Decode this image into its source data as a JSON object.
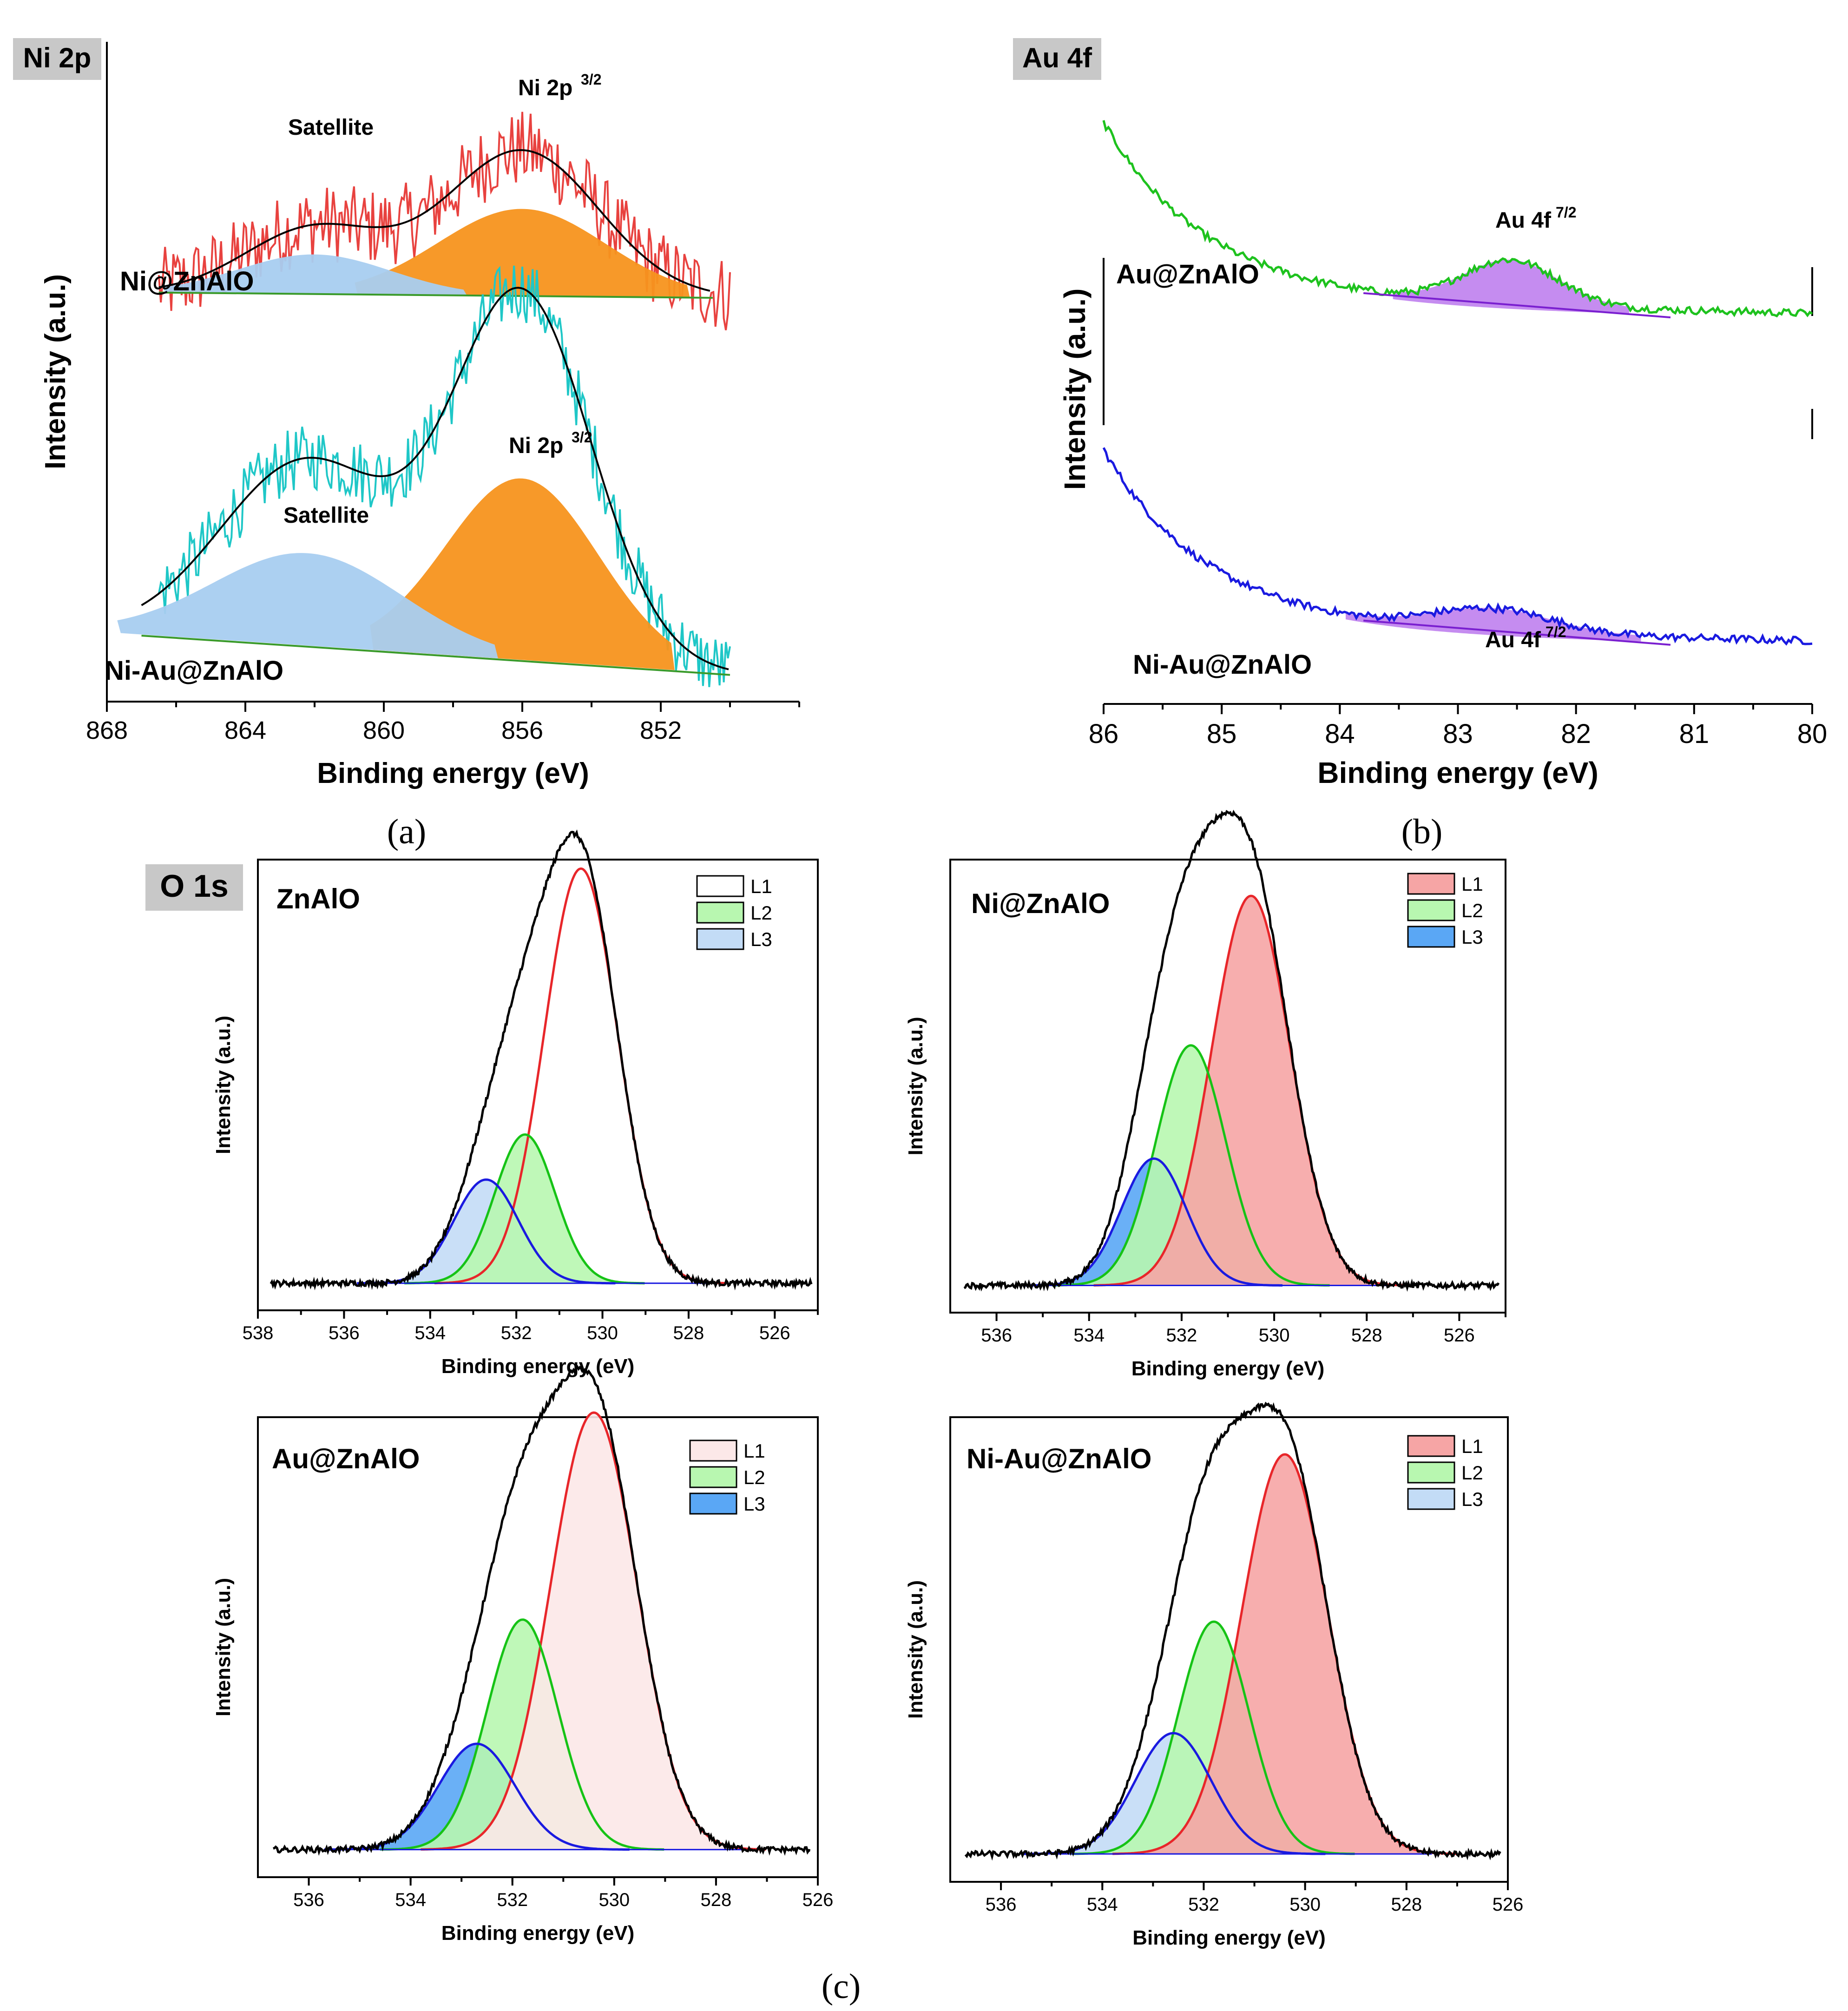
{
  "colors": {
    "ni_raw": "#e8423f",
    "niau_raw": "#1fc7c7",
    "au_raw": "#1ec21e",
    "niau_au_raw": "#1a1ae0",
    "orange_fill": "#f7931e",
    "blue_fill": "#a8cdf0",
    "purple_fill": "#c58cf0",
    "purple_line": "#7a1fd0",
    "l1_line": "#e8262a",
    "l1_fill": "#f6a5a5",
    "l1_fill_light": "#fce8e8",
    "l2_line": "#16c316",
    "l2_fill": "#b8f7b0",
    "l3_line": "#1a1ae0",
    "l3_fill": "#5aa7f5",
    "l3_fill_light": "#c3dcf6",
    "envelope": "#000000"
  },
  "panel_captions": [
    "(a)",
    "(b)",
    "(c)"
  ],
  "panel_tags": {
    "a": "Ni 2p",
    "b": "Au 4f",
    "c": "O 1s"
  },
  "chart_data": [
    {
      "id": "ni2p",
      "type": "line",
      "title": "Ni 2p",
      "xlabel": "Binding energy (eV)",
      "ylabel": "Intensity (a.u.)",
      "xlim": [
        868,
        848
      ],
      "xticks": [
        868,
        864,
        860,
        856,
        852
      ],
      "series": [
        {
          "name": "Ni@ZnAlO",
          "baseline": 0.62,
          "peaks": [
            {
              "label": "Ni 2p3/2",
              "center": 856.0,
              "amplitude": 0.22,
              "sigma": 2.2
            },
            {
              "label": "Satellite",
              "center": 862.0,
              "amplitude": 0.1,
              "sigma": 2.0
            }
          ],
          "fit_range": [
            866.5,
            850.5
          ]
        },
        {
          "name": "Ni-Au@ZnAlO",
          "baseline": 0.1,
          "peaks": [
            {
              "label": "Ni 2p3/2",
              "center": 856.0,
              "amplitude": 0.55,
              "sigma": 2.0
            },
            {
              "label": "Satellite",
              "center": 862.2,
              "amplitude": 0.28,
              "sigma": 2.5
            }
          ],
          "fit_range": [
            867.0,
            850.0
          ]
        }
      ],
      "annotations": {
        "top_peak": "Ni 2p",
        "top_peak_sup": "3/2",
        "top_sat": "Satellite",
        "bot_peak": "Ni 2p",
        "bot_peak_sup": "3/2",
        "bot_sat": "Satellite",
        "top_label": "Ni@ZnAlO",
        "bot_label": "Ni-Au@ZnAlO"
      }
    },
    {
      "id": "au4f",
      "type": "line",
      "title": "Au 4f",
      "xlabel": "Binding energy (eV)",
      "ylabel": "Intensity (a.u.)",
      "xlim": [
        86,
        80
      ],
      "xticks": [
        86,
        85,
        84,
        83,
        82,
        81,
        80
      ],
      "series": [
        {
          "name": "Au@ZnAlO",
          "peak_label": "Au 4f7/2",
          "center": 82.55,
          "amplitude": 0.07,
          "sigma": 0.4
        },
        {
          "name": "Ni-Au@ZnAlO",
          "peak_label": "Au 4f7/2",
          "center": 82.7,
          "amplitude": 0.035,
          "sigma": 0.5
        }
      ],
      "annotations": {
        "top_peak": "Au 4f",
        "top_peak_sup": "7/2",
        "bot_peak": "Au 4f",
        "bot_peak_sup": "7/2",
        "top_label": "Au@ZnAlO",
        "bot_label": "Ni-Au@ZnAlO"
      }
    },
    {
      "id": "o1s_znalo",
      "type": "line",
      "title": "ZnAlO",
      "xlabel": "Binding energy (eV)",
      "ylabel": "Intensity (a.u.)",
      "xlim": [
        538,
        525
      ],
      "xticks": [
        538,
        536,
        534,
        532,
        530,
        528,
        526
      ],
      "legend": [
        "L1",
        "L2",
        "L3"
      ],
      "components": [
        {
          "name": "L1",
          "center": 530.5,
          "amplitude": 0.92,
          "sigma": 0.85
        },
        {
          "name": "L2",
          "center": 531.8,
          "amplitude": 0.33,
          "sigma": 0.7
        },
        {
          "name": "L3",
          "center": 532.7,
          "amplitude": 0.23,
          "sigma": 0.75
        }
      ],
      "fill_style": {
        "L1": "none",
        "L2": "l2_fill",
        "L3": "l3_fill_light"
      }
    },
    {
      "id": "o1s_ni",
      "type": "line",
      "title": "Ni@ZnAlO",
      "xlabel": "Binding energy (eV)",
      "ylabel": "Intensity (a.u.)",
      "xlim": [
        537,
        525
      ],
      "xticks": [
        536,
        534,
        532,
        530,
        528,
        526
      ],
      "legend": [
        "L1",
        "L2",
        "L3"
      ],
      "components": [
        {
          "name": "L1",
          "center": 530.5,
          "amplitude": 0.86,
          "sigma": 0.85
        },
        {
          "name": "L2",
          "center": 531.8,
          "amplitude": 0.53,
          "sigma": 0.75
        },
        {
          "name": "L3",
          "center": 532.6,
          "amplitude": 0.28,
          "sigma": 0.7
        }
      ],
      "fill_style": {
        "L1": "l1_fill",
        "L2": "l2_fill",
        "L3": "l3_fill"
      }
    },
    {
      "id": "o1s_au",
      "type": "line",
      "title": "Au@ZnAlO",
      "xlabel": "Binding energy (eV)",
      "ylabel": "Intensity (a.u.)",
      "xlim": [
        537,
        526
      ],
      "xticks": [
        536,
        534,
        532,
        530,
        528,
        526
      ],
      "legend": [
        "L1",
        "L2",
        "L3"
      ],
      "components": [
        {
          "name": "L1",
          "center": 530.4,
          "amplitude": 0.95,
          "sigma": 0.85
        },
        {
          "name": "L2",
          "center": 531.8,
          "amplitude": 0.5,
          "sigma": 0.7
        },
        {
          "name": "L3",
          "center": 532.7,
          "amplitude": 0.23,
          "sigma": 0.75
        }
      ],
      "fill_style": {
        "L1": "l1_fill_light",
        "L2": "l2_fill",
        "L3": "l3_fill"
      }
    },
    {
      "id": "o1s_niau",
      "type": "line",
      "title": "Ni-Au@ZnAlO",
      "xlabel": "Binding energy (eV)",
      "ylabel": "Intensity (a.u.)",
      "xlim": [
        537,
        526
      ],
      "xticks": [
        536,
        534,
        532,
        530,
        528,
        526
      ],
      "legend": [
        "L1",
        "L2",
        "L3"
      ],
      "components": [
        {
          "name": "L1",
          "center": 530.4,
          "amplitude": 0.86,
          "sigma": 0.85
        },
        {
          "name": "L2",
          "center": 531.8,
          "amplitude": 0.5,
          "sigma": 0.7
        },
        {
          "name": "L3",
          "center": 532.6,
          "amplitude": 0.26,
          "sigma": 0.75
        }
      ],
      "fill_style": {
        "L1": "l1_fill",
        "L2": "l2_fill",
        "L3": "l3_fill_light"
      }
    }
  ]
}
